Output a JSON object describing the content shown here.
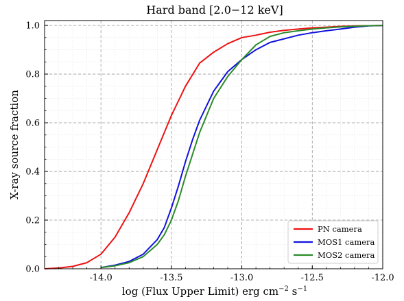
{
  "chart_data": {
    "type": "line",
    "title": "Hard band [2.0−12 keV]",
    "xlabel": "log (Flux Upper Limit) erg cm",
    "xlabel_sup1": "−2",
    "xlabel_mid": " s",
    "xlabel_sup2": "−1",
    "ylabel": "X-ray source fraction",
    "xlim": [
      -14.4,
      -12.0
    ],
    "ylim": [
      0.0,
      1.02
    ],
    "xticks": [
      -14.0,
      -13.5,
      -13.0,
      -12.5,
      -12.0
    ],
    "xtick_labels": [
      "-14.0",
      "-13.5",
      "-13.0",
      "-12.5",
      "-12.0"
    ],
    "yticks": [
      0.0,
      0.2,
      0.4,
      0.6,
      0.8,
      1.0
    ],
    "ytick_labels": [
      "0.0",
      "0.2",
      "0.4",
      "0.6",
      "0.8",
      "1.0"
    ],
    "grid": true,
    "legend_position": "lower-right",
    "series": [
      {
        "name": "PN camera",
        "color": "#ee1111",
        "x": [
          -14.4,
          -14.3,
          -14.2,
          -14.1,
          -14.0,
          -13.9,
          -13.8,
          -13.7,
          -13.6,
          -13.5,
          -13.4,
          -13.3,
          -13.2,
          -13.1,
          -13.0,
          -12.9,
          -12.8,
          -12.7,
          -12.6,
          -12.5,
          -12.4,
          -12.3,
          -12.2,
          -12.1,
          -12.0
        ],
        "y": [
          0.0,
          0.003,
          0.01,
          0.025,
          0.06,
          0.13,
          0.23,
          0.35,
          0.49,
          0.63,
          0.75,
          0.845,
          0.89,
          0.925,
          0.95,
          0.96,
          0.972,
          0.98,
          0.985,
          0.99,
          0.993,
          0.996,
          0.998,
          0.999,
          1.0
        ]
      },
      {
        "name": "MOS1 camera",
        "color": "#1111dd",
        "x": [
          -14.0,
          -13.9,
          -13.8,
          -13.7,
          -13.6,
          -13.55,
          -13.5,
          -13.45,
          -13.4,
          -13.35,
          -13.3,
          -13.2,
          -13.1,
          -13.0,
          -12.9,
          -12.8,
          -12.7,
          -12.6,
          -12.5,
          -12.4,
          -12.3,
          -12.2,
          -12.1,
          -12.0
        ],
        "y": [
          0.005,
          0.015,
          0.03,
          0.06,
          0.12,
          0.17,
          0.25,
          0.34,
          0.44,
          0.53,
          0.61,
          0.73,
          0.81,
          0.86,
          0.9,
          0.93,
          0.945,
          0.96,
          0.97,
          0.978,
          0.985,
          0.993,
          0.998,
          1.0
        ]
      },
      {
        "name": "MOS2 camera",
        "color": "#2a8a2a",
        "x": [
          -14.0,
          -13.9,
          -13.8,
          -13.7,
          -13.6,
          -13.55,
          -13.5,
          -13.45,
          -13.4,
          -13.35,
          -13.3,
          -13.2,
          -13.1,
          -13.0,
          -12.9,
          -12.8,
          -12.7,
          -12.6,
          -12.5,
          -12.4,
          -12.3,
          -12.2,
          -12.1,
          -12.0
        ],
        "y": [
          0.005,
          0.012,
          0.025,
          0.05,
          0.1,
          0.14,
          0.2,
          0.28,
          0.38,
          0.47,
          0.56,
          0.7,
          0.79,
          0.86,
          0.92,
          0.955,
          0.97,
          0.978,
          0.985,
          0.99,
          0.994,
          0.997,
          0.999,
          1.0
        ]
      }
    ]
  }
}
